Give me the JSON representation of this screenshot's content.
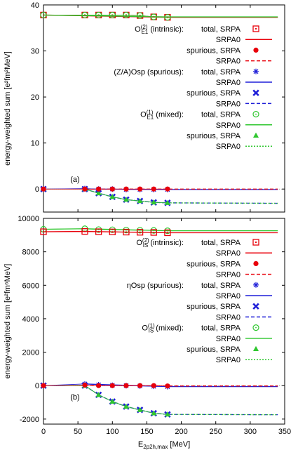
{
  "chart_data": [
    {
      "type": "line",
      "panel_label": "(a)",
      "ylabel": "energy-weighted sum [e²fm²MeV]",
      "xlim": [
        0,
        350
      ],
      "ylim": [
        -5,
        40
      ],
      "yticks": [
        0,
        10,
        20,
        30,
        40
      ],
      "grid": false,
      "legend_position": "right",
      "legend": [
        {
          "group": "O(2)E1 (intrinsic):",
          "label": "total, SRPA",
          "marker": "open-square",
          "color": "#e8000b"
        },
        {
          "label": "SRPA0",
          "line": "solid",
          "color": "#e8000b"
        },
        {
          "label": "spurious, SRPA",
          "marker": "filled-circle",
          "color": "#e8000b"
        },
        {
          "label": "SRPA0",
          "line": "dashed",
          "color": "#e8000b"
        },
        {
          "group": "(Z/A)Osp (spurious):",
          "label": "total, SRPA",
          "marker": "asterisk",
          "color": "#1f1fd8"
        },
        {
          "label": "SRPA0",
          "line": "solid",
          "color": "#1f1fd8"
        },
        {
          "label": "spurious, SRPA",
          "marker": "bold-cross",
          "color": "#1f1fd8"
        },
        {
          "label": "SRPA0",
          "line": "dashed",
          "color": "#1f1fd8"
        },
        {
          "group": "O(1)E1 (mixed):",
          "label": "total, SRPA",
          "marker": "open-circle",
          "color": "#2fc72f"
        },
        {
          "label": "SRPA0",
          "line": "solid",
          "color": "#2fc72f"
        },
        {
          "label": "spurious, SRPA",
          "marker": "filled-triangle",
          "color": "#2fc72f"
        },
        {
          "label": "SRPA0",
          "line": "dotted",
          "color": "#2fc72f"
        }
      ],
      "series": [
        {
          "key": "intrinsic_total",
          "x": [
            0,
            60,
            80,
            100,
            120,
            140,
            160,
            180
          ],
          "y": [
            37.8,
            37.8,
            37.8,
            37.8,
            37.8,
            37.7,
            37.4,
            37.3
          ],
          "color": "#e8000b",
          "marker": "open-square"
        },
        {
          "key": "mixed_total",
          "x": [
            0,
            60,
            80,
            100,
            120,
            140,
            160,
            180
          ],
          "y": [
            37.8,
            37.8,
            37.8,
            37.8,
            37.8,
            37.7,
            37.4,
            37.3
          ],
          "color": "#2fc72f",
          "marker": "open-circle"
        },
        {
          "key": "spurious_spurious",
          "x": [
            0,
            60,
            80,
            100,
            120,
            140,
            160,
            180
          ],
          "y": [
            0,
            0,
            -0.9,
            -1.7,
            -2.3,
            -2.6,
            -2.9,
            -3.0
          ],
          "color": "#1f1fd8",
          "marker": "bold-cross"
        },
        {
          "key": "mixed_spurious",
          "x": [
            0,
            60,
            80,
            100,
            120,
            140,
            160,
            180
          ],
          "y": [
            0,
            0,
            -0.9,
            -1.7,
            -2.3,
            -2.6,
            -2.9,
            -3.0
          ],
          "color": "#2fc72f",
          "marker": "filled-triangle"
        },
        {
          "key": "spurious_total",
          "x": [
            0,
            60,
            80,
            100,
            120,
            140,
            160,
            180
          ],
          "y": [
            0,
            0.1,
            0,
            0,
            -0.1,
            -0.1,
            -0.1,
            -0.1
          ],
          "color": "#1f1fd8",
          "marker": "asterisk"
        },
        {
          "key": "intrinsic_spurious",
          "x": [
            0,
            60,
            80,
            100,
            120,
            140,
            160,
            180
          ],
          "y": [
            0,
            0,
            0,
            0,
            0,
            0,
            0,
            0
          ],
          "color": "#e8000b",
          "marker": "filled-circle"
        }
      ],
      "srpa0_lines": [
        {
          "color": "#e8000b",
          "dash": "solid",
          "x": [
            0,
            180,
            185,
            340
          ],
          "y": [
            37.8,
            37.3,
            37.3,
            37.3
          ]
        },
        {
          "color": "#2fc72f",
          "dash": "solid",
          "x": [
            0,
            180,
            185,
            340
          ],
          "y": [
            37.8,
            37.4,
            37.4,
            37.4
          ]
        },
        {
          "color": "#1f1fd8",
          "dash": "dashed",
          "x": [
            60,
            80,
            100,
            120,
            140,
            160,
            180,
            340
          ],
          "y": [
            0,
            -0.9,
            -1.7,
            -2.3,
            -2.6,
            -2.9,
            -3.0,
            -3.1
          ]
        },
        {
          "color": "#2fc72f",
          "dash": "dotted",
          "x": [
            60,
            80,
            100,
            120,
            140,
            160,
            180,
            340
          ],
          "y": [
            0,
            -0.9,
            -1.7,
            -2.3,
            -2.6,
            -2.9,
            -3.0,
            -3.1
          ]
        },
        {
          "color": "#1f1fd8",
          "dash": "solid",
          "x": [
            60,
            180,
            340
          ],
          "y": [
            0,
            -0.1,
            -0.1
          ]
        },
        {
          "color": "#e8000b",
          "dash": "dashed",
          "x": [
            60,
            340
          ],
          "y": [
            0,
            0
          ]
        }
      ]
    },
    {
      "type": "line",
      "panel_label": "(b)",
      "xlabel": "E2p2h,max [MeV]",
      "ylabel": "energy-weighted sum [e²fm⁶MeV]",
      "xlim": [
        0,
        350
      ],
      "ylim": [
        -2300,
        10000
      ],
      "xticks": [
        0,
        50,
        100,
        150,
        200,
        250,
        300,
        350
      ],
      "yticks": [
        -2000,
        0,
        2000,
        4000,
        6000,
        8000,
        10000
      ],
      "grid": false,
      "legend_position": "right",
      "legend": [
        {
          "group": "O(2)IS (intrinsic):",
          "label": "total, SRPA",
          "marker": "open-square",
          "color": "#e8000b"
        },
        {
          "label": "SRPA0",
          "line": "solid",
          "color": "#e8000b"
        },
        {
          "label": "spurious, SRPA",
          "marker": "filled-circle",
          "color": "#e8000b"
        },
        {
          "label": "SRPA0",
          "line": "dashed",
          "color": "#e8000b"
        },
        {
          "group": "ηOsp (spurious):",
          "label": "total, SRPA",
          "marker": "asterisk",
          "color": "#1f1fd8"
        },
        {
          "label": "SRPA0",
          "line": "solid",
          "color": "#1f1fd8"
        },
        {
          "label": "spurious, SRPA",
          "marker": "bold-cross",
          "color": "#1f1fd8"
        },
        {
          "label": "SRPA0",
          "line": "dashed",
          "color": "#1f1fd8"
        },
        {
          "group": "O(1)IS (mixed):",
          "label": "total, SRPA",
          "marker": "open-circle",
          "color": "#2fc72f"
        },
        {
          "label": "SRPA0",
          "line": "solid",
          "color": "#2fc72f"
        },
        {
          "label": "spurious, SRPA",
          "marker": "filled-triangle",
          "color": "#2fc72f"
        },
        {
          "label": "SRPA0",
          "line": "dotted",
          "color": "#2fc72f"
        }
      ],
      "series": [
        {
          "key": "mixed_total",
          "x": [
            0,
            60,
            80,
            100,
            120,
            140,
            160,
            180
          ],
          "y": [
            9350,
            9380,
            9330,
            9320,
            9300,
            9290,
            9280,
            9260
          ],
          "color": "#2fc72f",
          "marker": "open-circle"
        },
        {
          "key": "intrinsic_total",
          "x": [
            0,
            60,
            80,
            100,
            120,
            140,
            160,
            180
          ],
          "y": [
            9200,
            9220,
            9200,
            9190,
            9180,
            9170,
            9160,
            9140
          ],
          "color": "#e8000b",
          "marker": "open-square"
        },
        {
          "key": "spurious_spurious",
          "x": [
            0,
            60,
            80,
            100,
            120,
            140,
            160,
            180
          ],
          "y": [
            0,
            0,
            -550,
            -950,
            -1250,
            -1450,
            -1650,
            -1720
          ],
          "color": "#1f1fd8",
          "marker": "bold-cross"
        },
        {
          "key": "mixed_spurious",
          "x": [
            0,
            60,
            80,
            100,
            120,
            140,
            160,
            180
          ],
          "y": [
            0,
            0,
            -550,
            -950,
            -1250,
            -1450,
            -1650,
            -1720
          ],
          "color": "#2fc72f",
          "marker": "filled-triangle"
        },
        {
          "key": "spurious_total",
          "x": [
            0,
            60,
            80,
            100,
            120,
            140,
            160,
            180
          ],
          "y": [
            0,
            100,
            50,
            20,
            0,
            -20,
            -40,
            -60
          ],
          "color": "#1f1fd8",
          "marker": "asterisk"
        },
        {
          "key": "intrinsic_spurious",
          "x": [
            0,
            60,
            80,
            100,
            120,
            140,
            160,
            180
          ],
          "y": [
            0,
            30,
            0,
            0,
            0,
            0,
            0,
            -20
          ],
          "color": "#e8000b",
          "marker": "filled-circle"
        }
      ],
      "srpa0_lines": [
        {
          "color": "#2fc72f",
          "dash": "solid",
          "x": [
            0,
            60,
            180,
            340
          ],
          "y": [
            9350,
            9380,
            9260,
            9260
          ]
        },
        {
          "color": "#e8000b",
          "dash": "solid",
          "x": [
            0,
            60,
            180,
            340
          ],
          "y": [
            9200,
            9220,
            9140,
            9140
          ]
        },
        {
          "color": "#1f1fd8",
          "dash": "dashed",
          "x": [
            60,
            80,
            100,
            120,
            140,
            160,
            180,
            340
          ],
          "y": [
            0,
            -550,
            -950,
            -1250,
            -1450,
            -1650,
            -1720,
            -1740
          ]
        },
        {
          "color": "#2fc72f",
          "dash": "dotted",
          "x": [
            60,
            80,
            100,
            120,
            140,
            160,
            180,
            340
          ],
          "y": [
            0,
            -550,
            -950,
            -1250,
            -1450,
            -1650,
            -1720,
            -1740
          ]
        },
        {
          "color": "#1f1fd8",
          "dash": "solid",
          "x": [
            60,
            180,
            340
          ],
          "y": [
            100,
            -60,
            -60
          ]
        },
        {
          "color": "#e8000b",
          "dash": "dashed",
          "x": [
            60,
            180,
            340
          ],
          "y": [
            30,
            -20,
            -20
          ]
        }
      ]
    }
  ]
}
